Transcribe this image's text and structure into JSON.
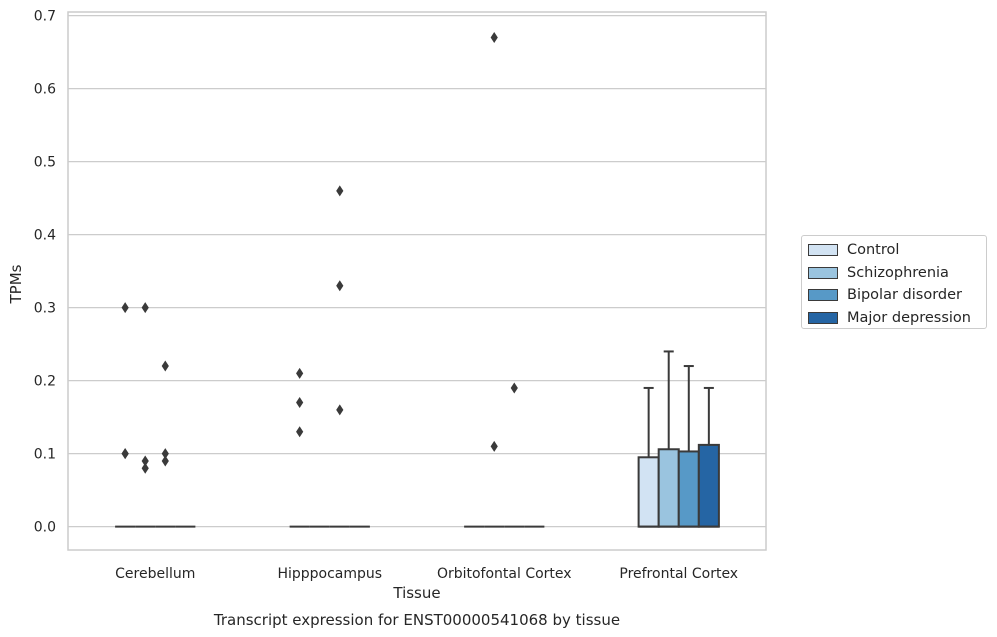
{
  "chart_data": {
    "type": "box",
    "title": "",
    "caption": "Transcript expression for ENST00000541068 by tissue",
    "xlabel": "Tissue",
    "ylabel": "TPMs",
    "ylim": [
      -0.032,
      0.705
    ],
    "yticks": [
      0.0,
      0.1,
      0.2,
      0.3,
      0.4,
      0.5,
      0.6,
      0.7
    ],
    "grid": true,
    "legend_position": "right",
    "categories": [
      "Cerebellum",
      "Hipppocampus",
      "Orbitofontal Cortex",
      "Prefrontal Cortex"
    ],
    "series": [
      {
        "name": "Control",
        "color": "#d2e3f3",
        "boxes": [
          {
            "q1": 0,
            "median": 0,
            "q3": 0,
            "whisker_low": 0,
            "whisker_high": 0,
            "outliers": [
              0.3,
              0.1,
              0.1
            ]
          },
          {
            "q1": 0,
            "median": 0,
            "q3": 0,
            "whisker_low": 0,
            "whisker_high": 0,
            "outliers": [
              0.21,
              0.17,
              0.13
            ]
          },
          {
            "q1": 0,
            "median": 0,
            "q3": 0,
            "whisker_low": 0,
            "whisker_high": 0,
            "outliers": []
          },
          {
            "q1": 0,
            "median": 0,
            "q3": 0.095,
            "whisker_low": 0,
            "whisker_high": 0.19,
            "outliers": []
          }
        ]
      },
      {
        "name": "Schizophrenia",
        "color": "#9ac4df",
        "boxes": [
          {
            "q1": 0,
            "median": 0,
            "q3": 0,
            "whisker_low": 0,
            "whisker_high": 0,
            "outliers": [
              0.3,
              0.09,
              0.08
            ]
          },
          {
            "q1": 0,
            "median": 0,
            "q3": 0,
            "whisker_low": 0,
            "whisker_high": 0,
            "outliers": []
          },
          {
            "q1": 0,
            "median": 0,
            "q3": 0,
            "whisker_low": 0,
            "whisker_high": 0,
            "outliers": [
              0.67,
              0.11
            ]
          },
          {
            "q1": 0,
            "median": 0,
            "q3": 0.106,
            "whisker_low": 0,
            "whisker_high": 0.24,
            "outliers": []
          }
        ]
      },
      {
        "name": "Bipolar disorder",
        "color": "#5799c7",
        "boxes": [
          {
            "q1": 0,
            "median": 0,
            "q3": 0,
            "whisker_low": 0,
            "whisker_high": 0,
            "outliers": [
              0.22,
              0.1,
              0.09
            ]
          },
          {
            "q1": 0,
            "median": 0,
            "q3": 0,
            "whisker_low": 0,
            "whisker_high": 0,
            "outliers": [
              0.46,
              0.33,
              0.16
            ]
          },
          {
            "q1": 0,
            "median": 0,
            "q3": 0,
            "whisker_low": 0,
            "whisker_high": 0,
            "outliers": [
              0.19
            ]
          },
          {
            "q1": 0,
            "median": 0,
            "q3": 0.103,
            "whisker_low": 0,
            "whisker_high": 0.22,
            "outliers": []
          }
        ]
      },
      {
        "name": "Major depression",
        "color": "#2565a4",
        "boxes": [
          {
            "q1": 0,
            "median": 0,
            "q3": 0,
            "whisker_low": 0,
            "whisker_high": 0,
            "outliers": []
          },
          {
            "q1": 0,
            "median": 0,
            "q3": 0,
            "whisker_low": 0,
            "whisker_high": 0,
            "outliers": []
          },
          {
            "q1": 0,
            "median": 0,
            "q3": 0,
            "whisker_low": 0,
            "whisker_high": 0,
            "outliers": []
          },
          {
            "q1": 0,
            "median": 0,
            "q3": 0.112,
            "whisker_low": 0,
            "whisker_high": 0.19,
            "outliers": []
          }
        ]
      }
    ]
  }
}
